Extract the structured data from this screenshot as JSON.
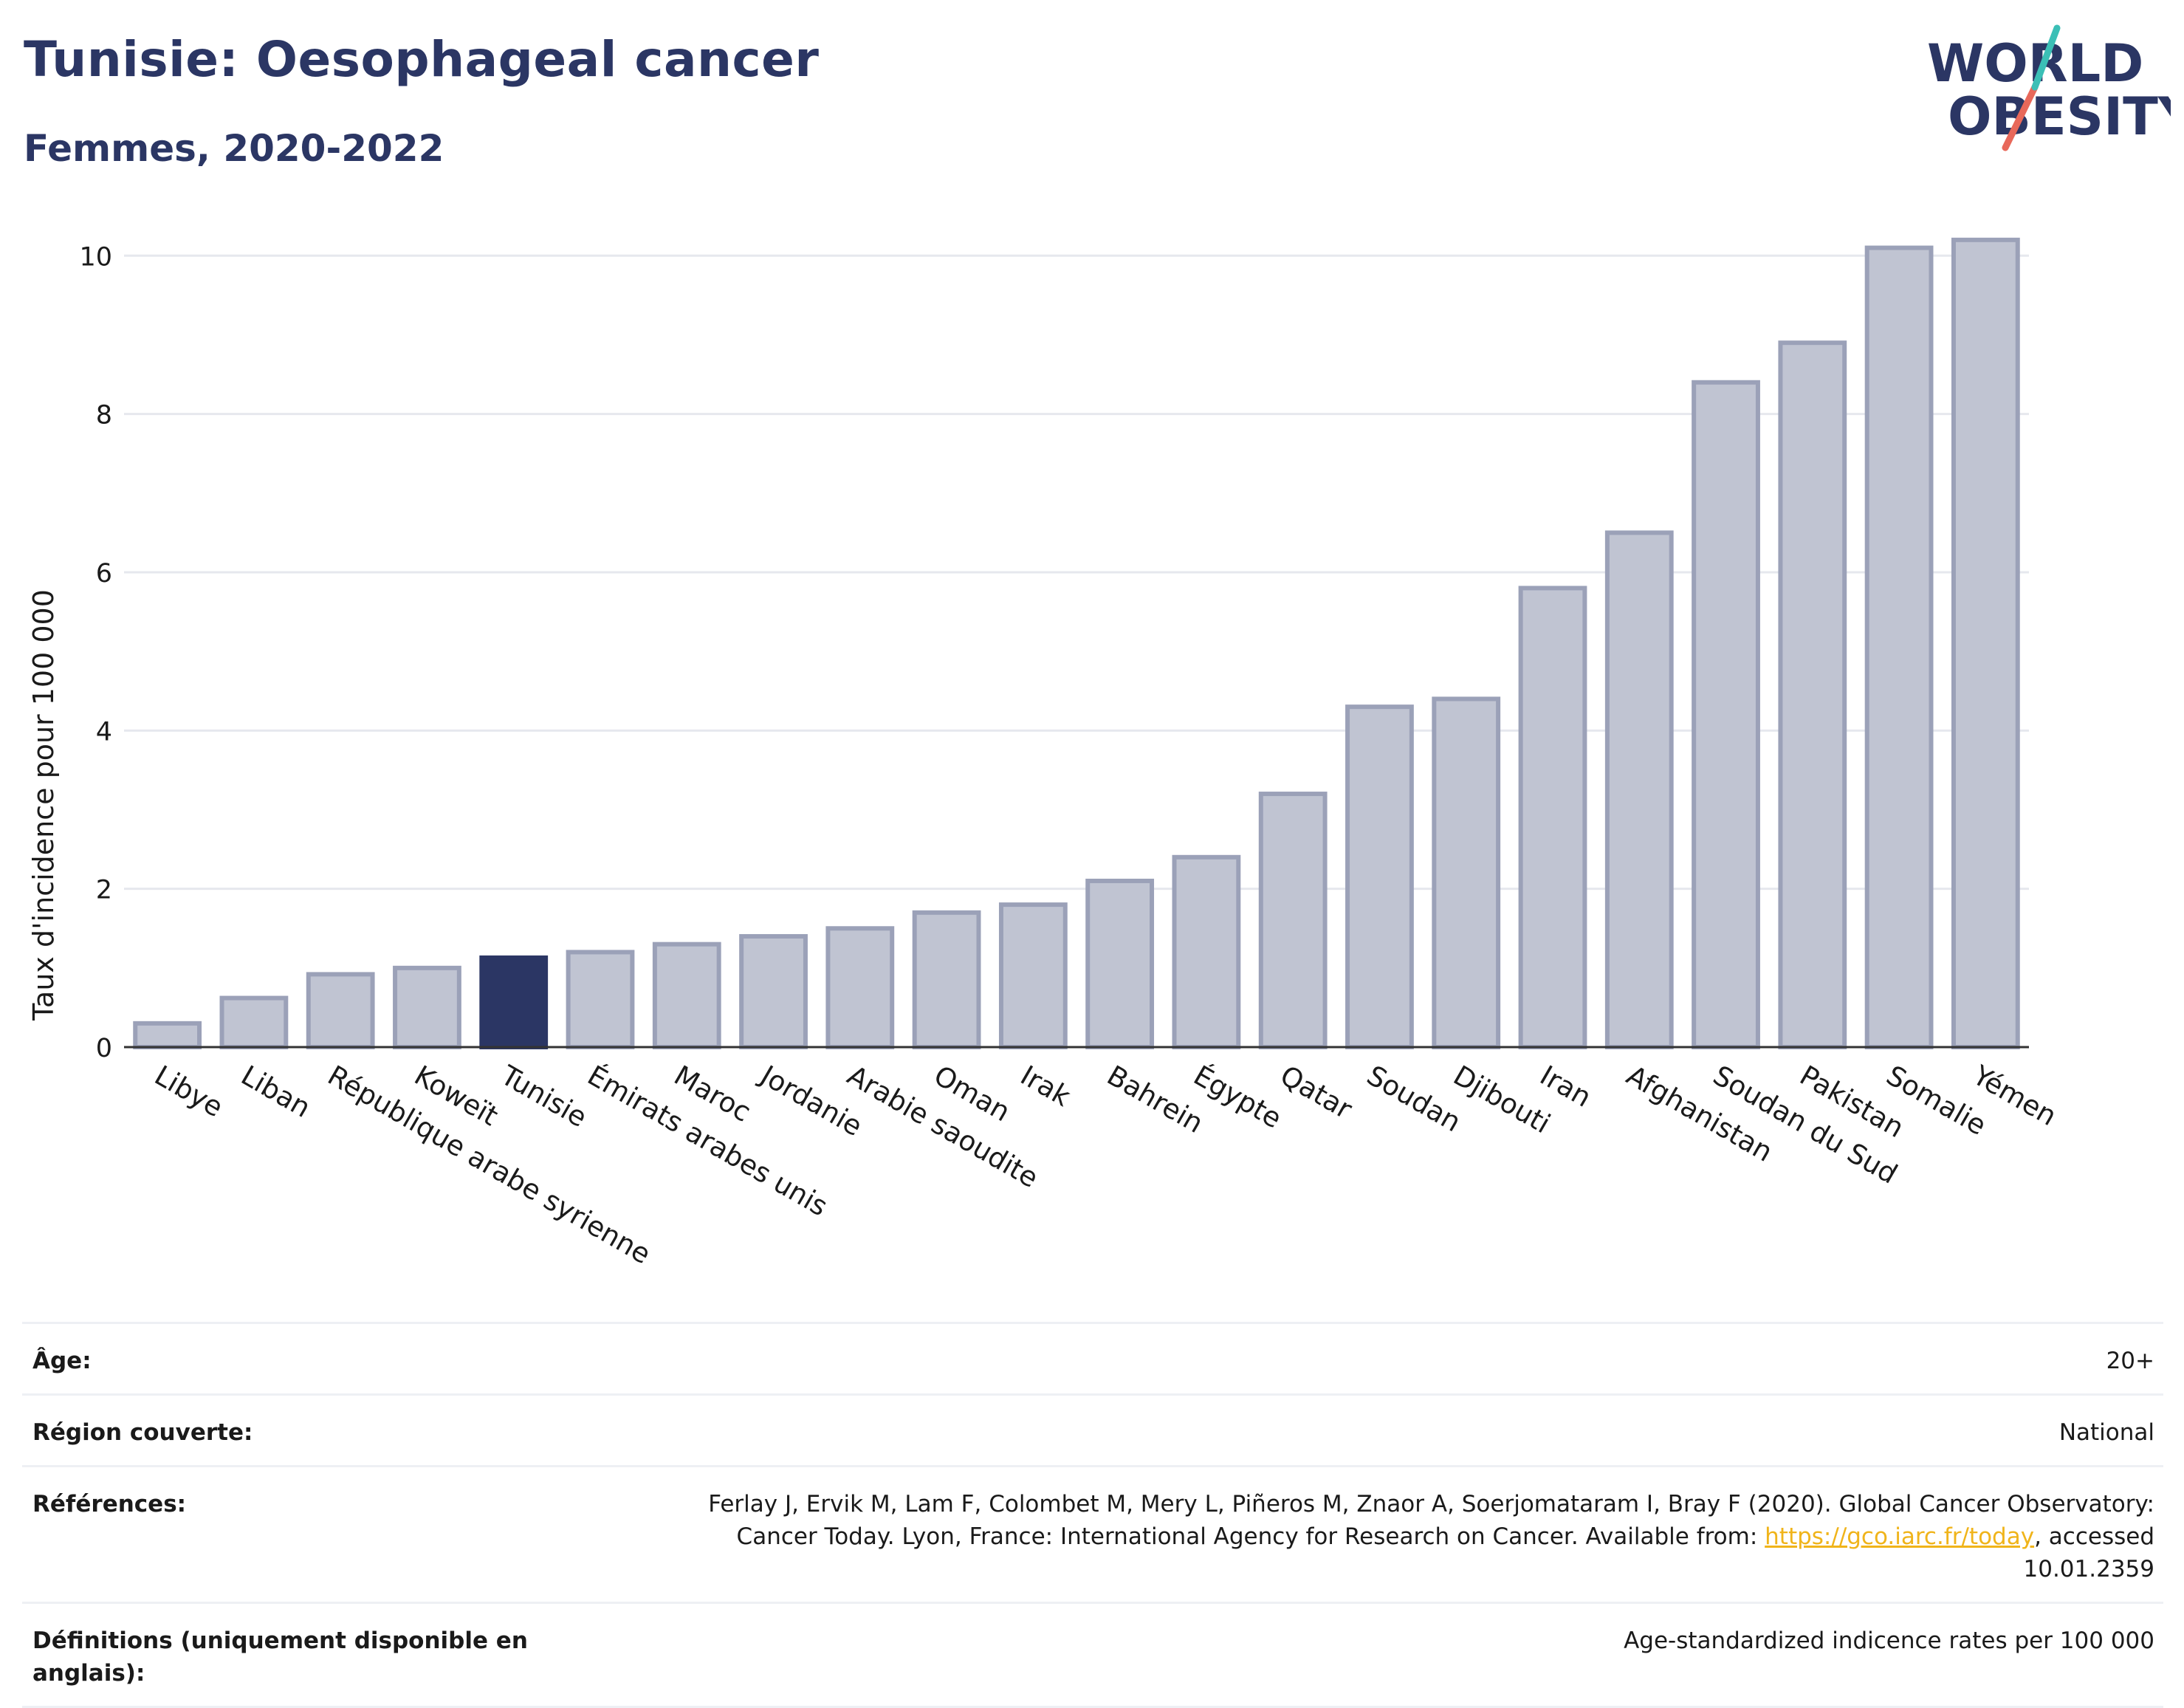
{
  "header": {
    "title": "Tunisie: Oesophageal cancer",
    "subtitle": "Femmes, 2020-2022"
  },
  "logo": {
    "line1": "WORLD",
    "line2": "OBESITY",
    "colors": {
      "text": "#2b3664",
      "slash_top": "#3bbfb6",
      "slash_bottom": "#e8685a"
    }
  },
  "chart_data": {
    "type": "bar",
    "ylabel": "Taux d'incidence pour 100 000",
    "ylim": [
      0,
      10.6
    ],
    "yticks": [
      0,
      2,
      4,
      6,
      8,
      10
    ],
    "grid": true,
    "highlight": "Tunisie",
    "colors": {
      "bar": "#c0c4d2",
      "bar_edge": "#9ba1b8",
      "highlight": "#2b3664",
      "grid": "#e6e8ee",
      "axis": "#333333"
    },
    "categories": [
      "Libye",
      "Liban",
      "République arabe syrienne",
      "Koweït",
      "Tunisie",
      "Émirats arabes unis",
      "Maroc",
      "Jordanie",
      "Arabie saoudite",
      "Oman",
      "Irak",
      "Bahrein",
      "Égypte",
      "Qatar",
      "Soudan",
      "Djibouti",
      "Iran",
      "Afghanistan",
      "Soudan du Sud",
      "Pakistan",
      "Somalie",
      "Yémen"
    ],
    "values": [
      0.3,
      0.62,
      0.92,
      1.0,
      1.13,
      1.2,
      1.3,
      1.4,
      1.5,
      1.7,
      1.8,
      2.1,
      2.4,
      3.2,
      4.3,
      4.4,
      5.8,
      6.5,
      8.4,
      8.9,
      10.1,
      10.2
    ]
  },
  "info": {
    "rows": [
      {
        "label": "Âge:",
        "value": "20+"
      },
      {
        "label": "Région couverte:",
        "value": "National"
      },
      {
        "label": "Références:",
        "value_pre": "Ferlay J, Ervik M, Lam F, Colombet M, Mery L, Piñeros M, Znaor A, Soerjomataram I, Bray F (2020). Global Cancer Observatory: Cancer Today. Lyon, France: International Agency for Research on Cancer. Available from: ",
        "link": "https://gco.iarc.fr/today",
        "value_post": ", accessed 10.01.2359"
      },
      {
        "label": "Définitions (uniquement disponible en anglais):",
        "value": "Age-standardized indicence rates per 100 000"
      }
    ]
  }
}
